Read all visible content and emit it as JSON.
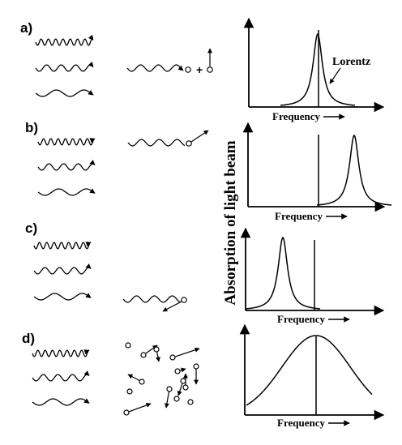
{
  "panels": [
    {
      "label": "a)",
      "type": "elastic"
    },
    {
      "label": "b)",
      "type": "blue"
    },
    {
      "label": "c)",
      "type": "red"
    },
    {
      "label": "d)",
      "type": "gas"
    }
  ],
  "plus_sign": "+",
  "lorentz_label": "Lorentz",
  "x_axis_label": "Frequency",
  "y_axis_label": "Absorption of light beam"
}
